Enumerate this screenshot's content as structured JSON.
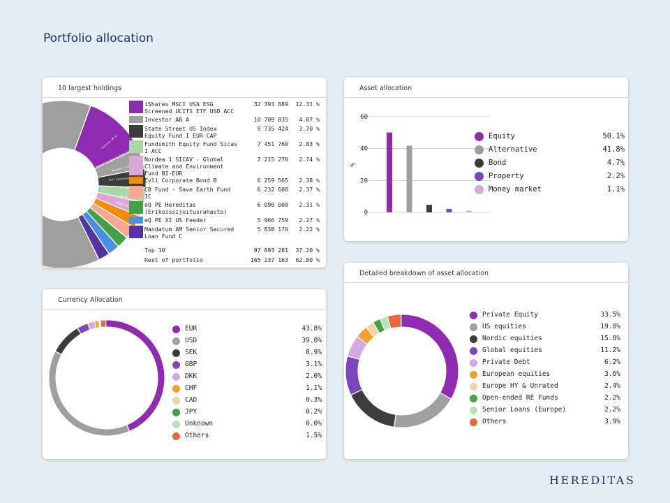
{
  "page_title": "Portfolio allocation",
  "logo_text": "HEREDITAS",
  "colors": {
    "purple": "#8e2bb0",
    "gray": "#9f9f9f",
    "dark": "#3c3c3c",
    "violet": "#7a45bd",
    "lilac": "#d6a8e0",
    "orange": "#f2a02e",
    "peach": "#f4d4a6",
    "green": "#43a047",
    "lightgreen": "#b9dfbd",
    "red": "#e8683a",
    "blue": "#4a90e2",
    "navy": "#5434a3",
    "salmon": "#f5a88f",
    "lightgray": "#c8c8c8",
    "pink": "#dca6d6",
    "mint": "#a8d8a8"
  },
  "holdings_card": {
    "title": "10 largest holdings",
    "summary": [
      {
        "label": "Top 10",
        "amount": "97 893 281",
        "pct": "37.20 %"
      },
      {
        "label": "Rest of portfolio",
        "amount": "165 237 163",
        "pct": "62.80 %"
      }
    ],
    "donut_stub_labels": [
      "Investor AB A",
      "Fundsmith Equity Fund Sicav I ACC",
      "Nordea 1 SICAV",
      "Evli Corporate Bond B",
      "CB Fund",
      "eQ PE",
      "Mandatum"
    ]
  },
  "asset_card": {
    "title": "Asset allocation",
    "ylabel": "%",
    "yticks": [
      "60",
      "40",
      "20",
      "0"
    ]
  },
  "currency_card": {
    "title": "Currency Allocation"
  },
  "detailed_card": {
    "title": "Detailed breakdown of asset allocation"
  },
  "chart_data": [
    {
      "type": "pie",
      "title": "10 largest holdings",
      "donut": true,
      "items": [
        {
          "name": "iShares MSCI USA ESG Screened UCITS ETF USD ACC",
          "amount": "32 393 889",
          "pct": "12.31 %",
          "value": 12.31,
          "color": "#8e2bb0"
        },
        {
          "name": "Investor AB A",
          "amount": "10 709 835",
          "pct": "4.07 %",
          "value": 4.07,
          "color": "#9f9f9f"
        },
        {
          "name": "State Street US Index Equity Fund I EUR CAP",
          "amount": "9 735 424",
          "pct": "3.70 %",
          "value": 3.7,
          "color": "#3c3c3c"
        },
        {
          "name": "Fundsmith Equity Fund Sicav I ACC",
          "amount": "7 451 760",
          "pct": "2.83 %",
          "value": 2.83,
          "color": "#a8d8a8"
        },
        {
          "name": "Nordea 1 SICAV - Global Climate and Environment Fund BI-EUR",
          "amount": "7 215 270",
          "pct": "2.74 %",
          "value": 2.74,
          "color": "#dca6d6"
        },
        {
          "name": "Evli Corporate Bond B",
          "amount": "6 259 565",
          "pct": "2.38 %",
          "value": 2.38,
          "color": "#f28c00"
        },
        {
          "name": "CB Fund - Save Earth Fund IC",
          "amount": "6 232 608",
          "pct": "2.37 %",
          "value": 2.37,
          "color": "#f5a88f"
        },
        {
          "name": "eQ PE Hereditas (Erikoissijoitusrahasto)",
          "amount": "6 090 000",
          "pct": "2.31 %",
          "value": 2.31,
          "color": "#43a047"
        },
        {
          "name": "eQ PE XI US Feeder",
          "amount": "5 966 759",
          "pct": "2.27 %",
          "value": 2.27,
          "color": "#4a90e2"
        },
        {
          "name": "Mandatum AM Senior Secured Loan Fund C",
          "amount": "5 838 170",
          "pct": "2.22 %",
          "value": 2.22,
          "color": "#5434a3"
        }
      ],
      "rest": {
        "value": 62.8,
        "color": "#9f9f9f"
      }
    },
    {
      "type": "bar",
      "title": "Asset allocation",
      "ylabel": "%",
      "ylim": [
        0,
        60
      ],
      "categories": [
        "Equity",
        "Alternative",
        "Bond",
        "Property",
        "Money market"
      ],
      "values": [
        50.1,
        41.8,
        4.7,
        2.2,
        1.1
      ],
      "value_labels": [
        "50.1%",
        "41.8%",
        "4.7%",
        "2.2%",
        "1.1%"
      ],
      "colors": [
        "#8e2bb0",
        "#9f9f9f",
        "#3c3c3c",
        "#7a45bd",
        "#d6a8e0"
      ]
    },
    {
      "type": "pie",
      "title": "Currency Allocation",
      "donut": true,
      "categories": [
        "EUR",
        "USD",
        "SEK",
        "GBP",
        "DKK",
        "CHF",
        "CAD",
        "JPY",
        "Unknown",
        "Others"
      ],
      "values": [
        43.8,
        39.0,
        8.9,
        3.1,
        2.0,
        1.1,
        0.3,
        0.2,
        0.0,
        1.5
      ],
      "value_labels": [
        "43.8%",
        "39.0%",
        "8.9%",
        "3.1%",
        "2.0%",
        "1.1%",
        "0.3%",
        "0.2%",
        "0.0%",
        "1.5%"
      ],
      "colors": [
        "#8e2bb0",
        "#9f9f9f",
        "#3c3c3c",
        "#7a45bd",
        "#d6a8e0",
        "#f2a02e",
        "#f4d4a6",
        "#43a047",
        "#b9dfbd",
        "#e8683a"
      ]
    },
    {
      "type": "pie",
      "title": "Detailed breakdown of asset allocation",
      "donut": true,
      "categories": [
        "Private Equity",
        "US equities",
        "Nordic equities",
        "Global equities",
        "Private Debt",
        "European equities",
        "Europe HY & Unrated",
        "Open-ended RE Funds",
        "Senior Loans (Europe)",
        "Others"
      ],
      "values": [
        33.5,
        19.0,
        15.8,
        11.2,
        6.2,
        3.6,
        2.4,
        2.2,
        2.2,
        3.9
      ],
      "value_labels": [
        "33.5%",
        "19.0%",
        "15.8%",
        "11.2%",
        "6.2%",
        "3.6%",
        "2.4%",
        "2.2%",
        "2.2%",
        "3.9%"
      ],
      "colors": [
        "#8e2bb0",
        "#9f9f9f",
        "#3c3c3c",
        "#7a45bd",
        "#d6a8e0",
        "#f2a02e",
        "#f4d4a6",
        "#43a047",
        "#b9dfbd",
        "#e8683a"
      ]
    }
  ]
}
